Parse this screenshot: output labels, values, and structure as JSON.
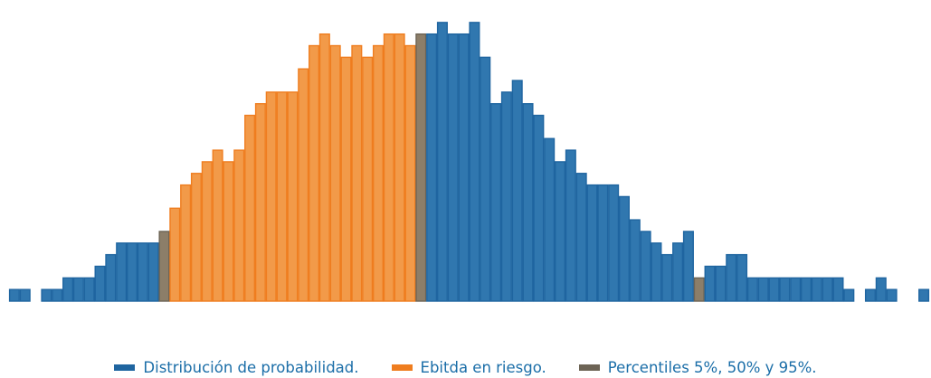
{
  "chart_data": {
    "type": "bar",
    "title": "",
    "xlabel": "",
    "ylabel": "",
    "ylim": [
      0,
      25
    ],
    "grid": false,
    "legend_position": "bottom-center",
    "series": [
      {
        "name": "Distribución de probabilidad.",
        "color": "#1f65a0",
        "fill": "#3077af"
      },
      {
        "name": "Ebitda en riesgo.",
        "color": "#ef7d1f",
        "fill": "#f29a49"
      },
      {
        "name": "Percentiles 5%, 50% y 95%.",
        "color": "#6d6455",
        "fill": "#8c7e69"
      }
    ],
    "bins": [
      {
        "v": 1,
        "s": 0
      },
      {
        "v": 1,
        "s": 0
      },
      {
        "v": 0,
        "s": 0
      },
      {
        "v": 1,
        "s": 0
      },
      {
        "v": 1,
        "s": 0
      },
      {
        "v": 2,
        "s": 0
      },
      {
        "v": 2,
        "s": 0
      },
      {
        "v": 2,
        "s": 0
      },
      {
        "v": 3,
        "s": 0
      },
      {
        "v": 4,
        "s": 0
      },
      {
        "v": 5,
        "s": 0
      },
      {
        "v": 5,
        "s": 0
      },
      {
        "v": 5,
        "s": 0
      },
      {
        "v": 5,
        "s": 0
      },
      {
        "v": 6,
        "s": 2
      },
      {
        "v": 8,
        "s": 1
      },
      {
        "v": 10,
        "s": 1
      },
      {
        "v": 11,
        "s": 1
      },
      {
        "v": 12,
        "s": 1
      },
      {
        "v": 13,
        "s": 1
      },
      {
        "v": 12,
        "s": 1
      },
      {
        "v": 13,
        "s": 1
      },
      {
        "v": 16,
        "s": 1
      },
      {
        "v": 17,
        "s": 1
      },
      {
        "v": 18,
        "s": 1
      },
      {
        "v": 18,
        "s": 1
      },
      {
        "v": 18,
        "s": 1
      },
      {
        "v": 20,
        "s": 1
      },
      {
        "v": 22,
        "s": 1
      },
      {
        "v": 23,
        "s": 1
      },
      {
        "v": 22,
        "s": 1
      },
      {
        "v": 21,
        "s": 1
      },
      {
        "v": 22,
        "s": 1
      },
      {
        "v": 21,
        "s": 1
      },
      {
        "v": 22,
        "s": 1
      },
      {
        "v": 23,
        "s": 1
      },
      {
        "v": 23,
        "s": 1
      },
      {
        "v": 22,
        "s": 1
      },
      {
        "v": 23,
        "s": 2
      },
      {
        "v": 23,
        "s": 0
      },
      {
        "v": 24,
        "s": 0
      },
      {
        "v": 23,
        "s": 0
      },
      {
        "v": 23,
        "s": 0
      },
      {
        "v": 24,
        "s": 0
      },
      {
        "v": 21,
        "s": 0
      },
      {
        "v": 17,
        "s": 0
      },
      {
        "v": 18,
        "s": 0
      },
      {
        "v": 19,
        "s": 0
      },
      {
        "v": 17,
        "s": 0
      },
      {
        "v": 16,
        "s": 0
      },
      {
        "v": 14,
        "s": 0
      },
      {
        "v": 12,
        "s": 0
      },
      {
        "v": 13,
        "s": 0
      },
      {
        "v": 11,
        "s": 0
      },
      {
        "v": 10,
        "s": 0
      },
      {
        "v": 10,
        "s": 0
      },
      {
        "v": 10,
        "s": 0
      },
      {
        "v": 9,
        "s": 0
      },
      {
        "v": 7,
        "s": 0
      },
      {
        "v": 6,
        "s": 0
      },
      {
        "v": 5,
        "s": 0
      },
      {
        "v": 4,
        "s": 0
      },
      {
        "v": 5,
        "s": 0
      },
      {
        "v": 6,
        "s": 0
      },
      {
        "v": 2,
        "s": 2
      },
      {
        "v": 3,
        "s": 0
      },
      {
        "v": 3,
        "s": 0
      },
      {
        "v": 4,
        "s": 0
      },
      {
        "v": 4,
        "s": 0
      },
      {
        "v": 2,
        "s": 0
      },
      {
        "v": 2,
        "s": 0
      },
      {
        "v": 2,
        "s": 0
      },
      {
        "v": 2,
        "s": 0
      },
      {
        "v": 2,
        "s": 0
      },
      {
        "v": 2,
        "s": 0
      },
      {
        "v": 2,
        "s": 0
      },
      {
        "v": 2,
        "s": 0
      },
      {
        "v": 2,
        "s": 0
      },
      {
        "v": 1,
        "s": 0
      },
      {
        "v": 0,
        "s": 0
      },
      {
        "v": 1,
        "s": 0
      },
      {
        "v": 2,
        "s": 0
      },
      {
        "v": 1,
        "s": 0
      },
      {
        "v": 0,
        "s": 0
      },
      {
        "v": 0,
        "s": 0
      },
      {
        "v": 1,
        "s": 0
      }
    ]
  },
  "legend": [
    {
      "label": "Distribución de probabilidad.",
      "color": "#1f65a0"
    },
    {
      "label": "Ebitda en riesgo.",
      "color": "#ef7d1f"
    },
    {
      "label": "Percentiles 5%, 50% y 95%.",
      "color": "#6d6455"
    }
  ]
}
